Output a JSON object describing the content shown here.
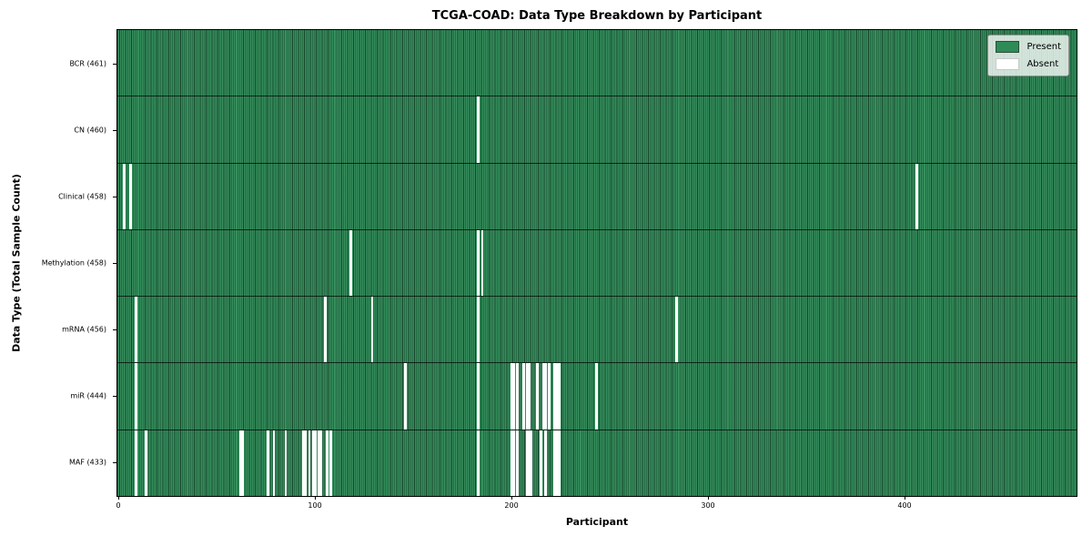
{
  "figure": {
    "title": "TCGA-COAD: Data Type Breakdown by Participant",
    "xlabel": "Participant",
    "ylabel": "Data Type (Total Sample Count)"
  },
  "legend": {
    "items": [
      {
        "label": "Present",
        "color": "#2e8b57"
      },
      {
        "label": "Absent",
        "color": "#ffffff"
      }
    ]
  },
  "colors": {
    "present": "#2e8b57",
    "absent": "#ffffff",
    "cell_edge": "rgba(0,0,0,0.5)",
    "frame": "#000000",
    "legend_background": "rgba(255,255,255,0.78)"
  },
  "chart_data": {
    "type": "heatmap",
    "title": "TCGA-COAD: Data Type Breakdown by Participant",
    "xlabel": "Participant",
    "ylabel": "Data Type (Total Sample Count)",
    "x_ticks": [
      0,
      100,
      200,
      300,
      400
    ],
    "x_axis_participants": 488,
    "grid": false,
    "legend": [
      "Present",
      "Absent"
    ],
    "legend_position": "upper right",
    "rows": [
      {
        "data_type": "BCR",
        "total_samples": 461,
        "label": "BCR (461)",
        "absent_participants": []
      },
      {
        "data_type": "CN",
        "total_samples": 460,
        "label": "CN (460)",
        "absent_participants": [
          183
        ]
      },
      {
        "data_type": "Clinical",
        "total_samples": 458,
        "label": "Clinical (458)",
        "absent_participants": [
          3,
          6,
          406
        ]
      },
      {
        "data_type": "Methylation",
        "total_samples": 458,
        "label": "Methylation (458)",
        "absent_participants": [
          118,
          183,
          185
        ]
      },
      {
        "data_type": "mRNA",
        "total_samples": 456,
        "label": "mRNA (456)",
        "absent_participants": [
          9,
          105,
          129,
          183,
          284
        ]
      },
      {
        "data_type": "miR",
        "total_samples": 444,
        "label": "miR (444)",
        "absent_participants": [
          9,
          146,
          183,
          200,
          201,
          203,
          206,
          208,
          209,
          213,
          216,
          217,
          219,
          222,
          223,
          224,
          243
        ]
      },
      {
        "data_type": "MAF",
        "total_samples": 433,
        "label": "MAF (433)",
        "absent_participants": [
          9,
          14,
          62,
          63,
          76,
          79,
          85,
          94,
          95,
          97,
          99,
          100,
          102,
          103,
          106,
          108,
          183,
          200,
          201,
          203,
          208,
          209,
          210,
          215,
          217,
          222,
          223,
          224
        ]
      }
    ]
  }
}
